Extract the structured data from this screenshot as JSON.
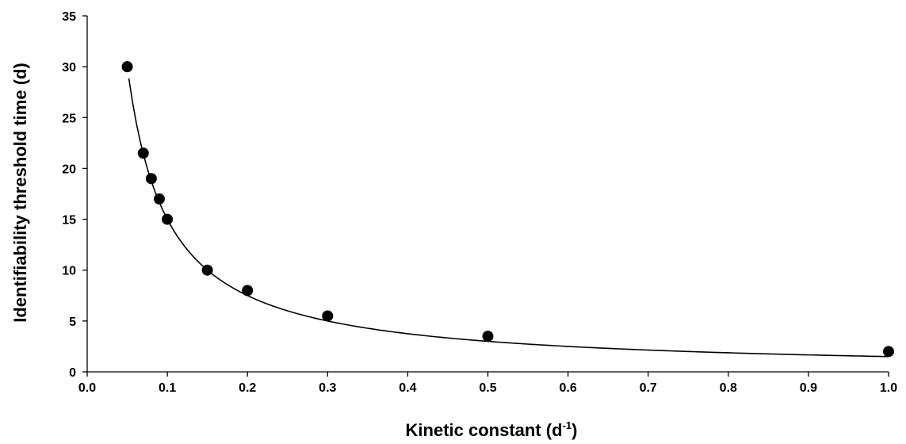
{
  "chart_data": {
    "type": "scatter",
    "title": "",
    "xlabel": "Kinetic constant (d",
    "xlabel_sup": "-1",
    "xlabel_end": ")",
    "ylabel": "Identifiability threshold time (d)",
    "xlim": [
      0.0,
      1.0
    ],
    "ylim": [
      0,
      35
    ],
    "x_ticks": [
      "0.0",
      "0.1",
      "0.2",
      "0.3",
      "0.4",
      "0.5",
      "0.6",
      "0.7",
      "0.8",
      "0.9",
      "1.0"
    ],
    "y_ticks": [
      "0",
      "5",
      "10",
      "15",
      "20",
      "25",
      "30",
      "35"
    ],
    "grid": false,
    "marker_color": "#000000",
    "series": [
      {
        "x": [
          0.05,
          0.07,
          0.08,
          0.09,
          0.1,
          0.15,
          0.2,
          0.3,
          0.5,
          1.0
        ],
        "y": [
          30,
          21.5,
          19,
          17,
          15,
          10,
          8,
          5.5,
          3.5,
          2
        ]
      }
    ],
    "trendline": {
      "type": "power",
      "coefficient": 1.5,
      "exponent": -1,
      "x_range": [
        0.052,
        1.0
      ]
    }
  }
}
